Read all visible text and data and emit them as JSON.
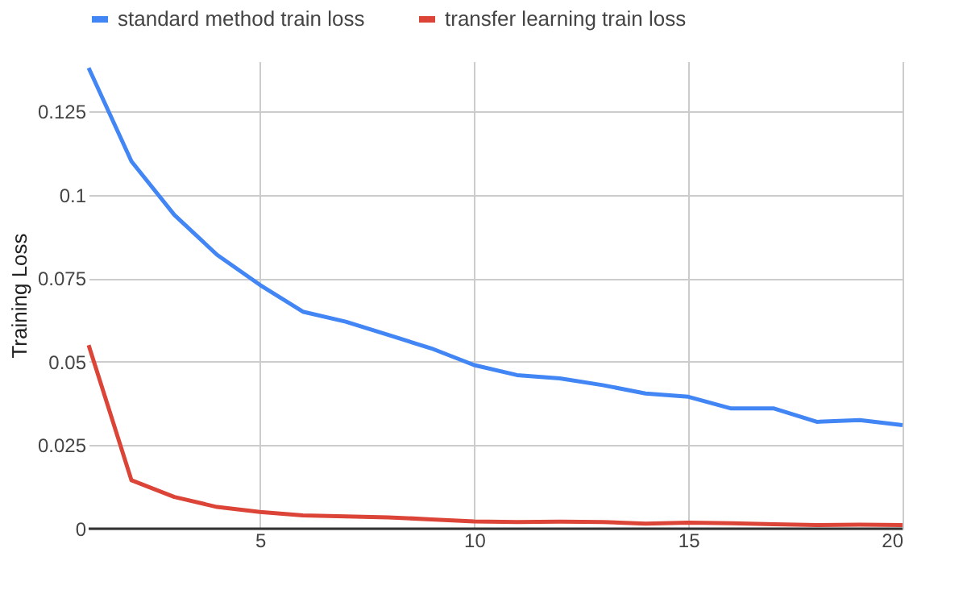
{
  "chart_data": {
    "type": "line",
    "ylabel": "Training Loss",
    "x": [
      1,
      2,
      3,
      4,
      5,
      6,
      7,
      8,
      9,
      10,
      11,
      12,
      13,
      14,
      15,
      16,
      17,
      18,
      19,
      20
    ],
    "series": [
      {
        "name": "standard method train loss",
        "color": "#4285f4",
        "values": [
          0.138,
          0.11,
          0.094,
          0.082,
          0.073,
          0.065,
          0.062,
          0.058,
          0.054,
          0.049,
          0.046,
          0.045,
          0.043,
          0.0405,
          0.0395,
          0.036,
          0.036,
          0.032,
          0.0325,
          0.031
        ]
      },
      {
        "name": "transfer learning train loss",
        "color": "#db4437",
        "values": [
          0.055,
          0.0145,
          0.0095,
          0.0065,
          0.005,
          0.004,
          0.0037,
          0.0034,
          0.0028,
          0.0022,
          0.002,
          0.0021,
          0.002,
          0.0015,
          0.0018,
          0.0016,
          0.0013,
          0.0011,
          0.0012,
          0.0011
        ]
      }
    ],
    "xlim": [
      1,
      20
    ],
    "xticks": [
      5,
      10,
      15,
      20
    ],
    "ylim": [
      0,
      0.14
    ],
    "yticks": [
      0,
      0.025,
      0.05,
      0.075,
      0.1,
      0.125
    ],
    "grid": true,
    "legend": "top",
    "marker": "none",
    "line_style": "solid"
  }
}
